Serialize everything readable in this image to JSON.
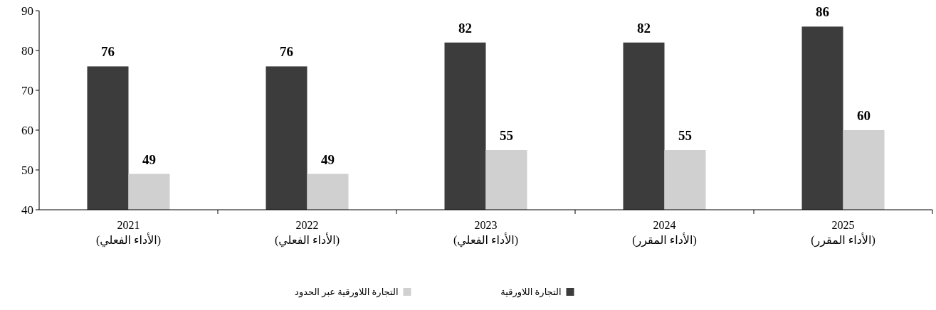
{
  "chart_data": {
    "type": "bar",
    "categories": [
      "2021\n(الأداء الفعلي)",
      "2022\n(الأداء الفعلي)",
      "2023\n(الأداء الفعلي)",
      "2024\n(الأداء المقرر)",
      "2025\n(الأداء المقرر)"
    ],
    "series": [
      {
        "name": "التجارة اللاورقية",
        "color": "#3c3c3c",
        "values": [
          76,
          76,
          82,
          82,
          86
        ]
      },
      {
        "name": "التجارة اللاورقية عبر الحدود",
        "color": "#d0d0d0",
        "values": [
          49,
          49,
          55,
          55,
          60
        ]
      }
    ],
    "ylim": [
      40,
      90
    ],
    "yticks": [
      40,
      50,
      60,
      70,
      80,
      90
    ],
    "data_labels": true,
    "legend": "bottom"
  }
}
